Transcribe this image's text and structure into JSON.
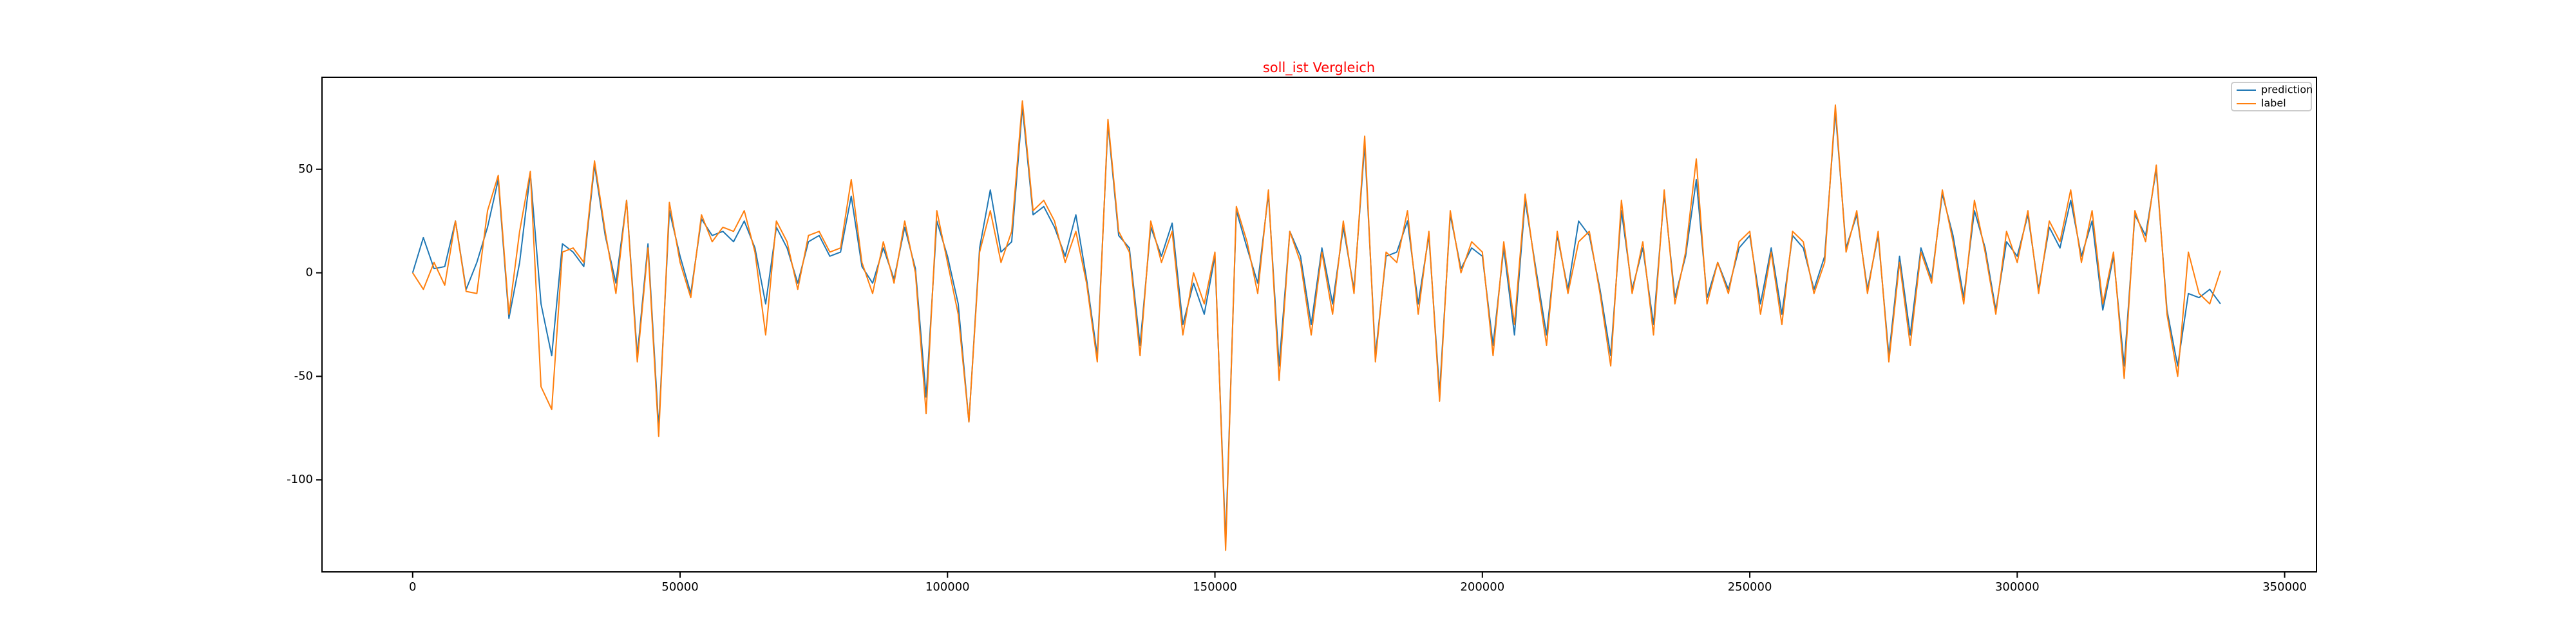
{
  "chart_data": {
    "type": "line",
    "title": "soll_ist Vergleich",
    "title_color": "#ff0000",
    "x": [
      0,
      2000,
      4000,
      6000,
      8000,
      10000,
      12000,
      14000,
      16000,
      18000,
      20000,
      22000,
      24000,
      26000,
      28000,
      30000,
      32000,
      34000,
      36000,
      38000,
      40000,
      42000,
      44000,
      46000,
      48000,
      50000,
      52000,
      54000,
      56000,
      58000,
      60000,
      62000,
      64000,
      66000,
      68000,
      70000,
      72000,
      74000,
      76000,
      78000,
      80000,
      82000,
      84000,
      86000,
      88000,
      90000,
      92000,
      94000,
      96000,
      98000,
      100000,
      102000,
      104000,
      106000,
      108000,
      110000,
      112000,
      114000,
      116000,
      118000,
      120000,
      122000,
      124000,
      126000,
      128000,
      130000,
      132000,
      134000,
      136000,
      138000,
      140000,
      142000,
      144000,
      146000,
      148000,
      150000,
      152000,
      154000,
      156000,
      158000,
      160000,
      162000,
      164000,
      166000,
      168000,
      170000,
      172000,
      174000,
      176000,
      178000,
      180000,
      182000,
      184000,
      186000,
      188000,
      190000,
      192000,
      194000,
      196000,
      198000,
      200000,
      202000,
      204000,
      206000,
      208000,
      210000,
      212000,
      214000,
      216000,
      218000,
      220000,
      222000,
      224000,
      226000,
      228000,
      230000,
      232000,
      234000,
      236000,
      238000,
      240000,
      242000,
      244000,
      246000,
      248000,
      250000,
      252000,
      254000,
      256000,
      258000,
      260000,
      262000,
      264000,
      266000,
      268000,
      270000,
      272000,
      274000,
      276000,
      278000,
      280000,
      282000,
      284000,
      286000,
      288000,
      290000,
      292000,
      294000,
      296000,
      298000,
      300000,
      302000,
      304000,
      306000,
      308000,
      310000,
      312000,
      314000,
      316000,
      318000,
      320000,
      322000,
      324000,
      326000,
      328000,
      330000,
      332000,
      334000,
      336000,
      338000
    ],
    "series": [
      {
        "name": "prediction",
        "color": "#1f77b4",
        "values": [
          0,
          17,
          2,
          3,
          25,
          -8,
          5,
          22,
          45,
          -22,
          5,
          48,
          -15,
          -40,
          14,
          10,
          3,
          52,
          18,
          -5,
          35,
          -40,
          14,
          -75,
          30,
          8,
          -10,
          26,
          18,
          20,
          15,
          25,
          12,
          -15,
          22,
          12,
          -5,
          15,
          18,
          8,
          10,
          37,
          3,
          -5,
          12,
          -3,
          22,
          2,
          -60,
          25,
          8,
          -15,
          -72,
          12,
          40,
          10,
          15,
          80,
          28,
          32,
          22,
          8,
          28,
          -3,
          -40,
          72,
          18,
          12,
          -35,
          22,
          8,
          24,
          -25,
          -5,
          -20,
          8,
          -130,
          30,
          12,
          -5,
          38,
          -45,
          20,
          8,
          -25,
          12,
          -15,
          22,
          -8,
          62,
          -40,
          8,
          10,
          25,
          -15,
          18,
          -58,
          28,
          2,
          12,
          8,
          -35,
          12,
          -30,
          35,
          2,
          -30,
          18,
          -8,
          25,
          18,
          -8,
          -40,
          30,
          -8,
          12,
          -25,
          38,
          -12,
          8,
          45,
          -12,
          5,
          -8,
          12,
          18,
          -15,
          12,
          -20,
          18,
          12,
          -8,
          8,
          78,
          12,
          28,
          -8,
          18,
          -40,
          8,
          -30,
          12,
          -3,
          38,
          18,
          -12,
          30,
          12,
          -18,
          15,
          8,
          28,
          -8,
          22,
          12,
          35,
          8,
          25,
          -18,
          8,
          -45,
          28,
          18,
          50,
          -18,
          -45,
          -10,
          -12,
          -8,
          -15
        ]
      },
      {
        "name": "label",
        "color": "#ff7f0e",
        "values": [
          0,
          -8,
          5,
          -6,
          25,
          -9,
          -10,
          30,
          47,
          -20,
          20,
          49,
          -55,
          -66,
          10,
          12,
          5,
          54,
          20,
          -10,
          35,
          -43,
          12,
          -79,
          34,
          5,
          -12,
          28,
          15,
          22,
          20,
          30,
          10,
          -30,
          25,
          15,
          -8,
          18,
          20,
          10,
          12,
          45,
          5,
          -10,
          15,
          -5,
          25,
          0,
          -68,
          30,
          5,
          -20,
          -72,
          10,
          30,
          5,
          20,
          83,
          30,
          35,
          25,
          5,
          20,
          -5,
          -43,
          74,
          20,
          10,
          -40,
          25,
          5,
          20,
          -30,
          0,
          -15,
          10,
          -134,
          32,
          15,
          -10,
          40,
          -52,
          20,
          5,
          -30,
          10,
          -20,
          25,
          -10,
          66,
          -43,
          10,
          5,
          30,
          -20,
          20,
          -62,
          30,
          0,
          15,
          10,
          -40,
          15,
          -25,
          38,
          0,
          -35,
          20,
          -10,
          15,
          20,
          -10,
          -45,
          35,
          -10,
          15,
          -30,
          40,
          -15,
          10,
          55,
          -15,
          5,
          -10,
          15,
          20,
          -20,
          10,
          -25,
          20,
          15,
          -10,
          5,
          81,
          10,
          30,
          -10,
          20,
          -43,
          5,
          -35,
          10,
          -5,
          40,
          15,
          -15,
          35,
          10,
          -20,
          20,
          5,
          30,
          -10,
          25,
          15,
          40,
          5,
          30,
          -15,
          10,
          -51,
          30,
          15,
          52,
          -20,
          -50,
          10,
          -10,
          -15,
          1
        ]
      }
    ],
    "xlim": [
      -16950,
      355950
    ],
    "xticks": [
      0,
      50000,
      100000,
      150000,
      200000,
      250000,
      300000,
      350000
    ],
    "ylim": [
      -144.4,
      94.4
    ],
    "yticks": [
      -100,
      -50,
      0,
      50
    ],
    "grid": false,
    "legend": "upper right"
  }
}
